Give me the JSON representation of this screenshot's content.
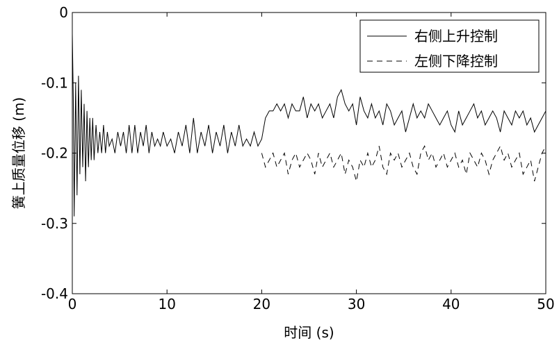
{
  "chart_data": {
    "type": "line",
    "title": "",
    "xlabel": "时间 (s)",
    "ylabel": "簧上质量位移 (m)",
    "xlim": [
      0,
      50
    ],
    "ylim": [
      -0.4,
      0
    ],
    "xticks": [
      0,
      10,
      20,
      30,
      40,
      50
    ],
    "yticks": [
      0,
      -0.1,
      -0.2,
      -0.3,
      -0.4
    ],
    "xtick_labels": [
      "0",
      "10",
      "20",
      "30",
      "40",
      "50"
    ],
    "ytick_labels": [
      "0",
      "-0.1",
      "-0.2",
      "-0.3",
      "-0.4"
    ],
    "grid": false,
    "legend_position": "top-right",
    "series": [
      {
        "name": "右侧上升控制",
        "style": "solid",
        "color": "#000000",
        "x": [
          0,
          0.1,
          0.2,
          0.35,
          0.5,
          0.65,
          0.8,
          0.95,
          1.1,
          1.25,
          1.4,
          1.55,
          1.7,
          1.85,
          2.0,
          2.15,
          2.3,
          2.5,
          2.7,
          2.9,
          3.1,
          3.3,
          3.5,
          3.7,
          3.9,
          4.2,
          4.5,
          4.8,
          5.1,
          5.4,
          5.7,
          6.0,
          6.3,
          6.6,
          6.9,
          7.2,
          7.5,
          7.8,
          8.1,
          8.4,
          8.7,
          9.0,
          9.3,
          9.6,
          10.0,
          10.4,
          10.8,
          11.2,
          11.6,
          12.0,
          12.4,
          12.8,
          13.2,
          13.6,
          14.0,
          14.4,
          14.8,
          15.2,
          15.6,
          16.0,
          16.4,
          16.8,
          17.2,
          17.6,
          18.0,
          18.4,
          18.8,
          19.2,
          19.6,
          20.0,
          20.4,
          20.8,
          21.2,
          21.6,
          22.0,
          22.4,
          22.8,
          23.2,
          23.6,
          24.0,
          24.4,
          24.8,
          25.2,
          25.6,
          26.0,
          26.4,
          26.8,
          27.2,
          27.6,
          28.0,
          28.4,
          28.8,
          29.2,
          29.6,
          30.0,
          30.4,
          30.8,
          31.2,
          31.6,
          32.0,
          32.4,
          32.8,
          33.2,
          33.6,
          34.0,
          34.4,
          34.8,
          35.2,
          35.6,
          36.0,
          36.4,
          36.8,
          37.2,
          37.6,
          38.0,
          38.4,
          38.8,
          39.2,
          39.6,
          40.0,
          40.4,
          40.8,
          41.2,
          41.6,
          42.0,
          42.4,
          42.8,
          43.2,
          43.6,
          44.0,
          44.4,
          44.8,
          45.2,
          45.6,
          46.0,
          46.4,
          46.8,
          47.2,
          47.6,
          48.0,
          48.4,
          48.8,
          49.2,
          49.6,
          50.0
        ],
        "y": [
          -0.03,
          -0.12,
          -0.29,
          -0.1,
          -0.26,
          -0.09,
          -0.23,
          -0.11,
          -0.22,
          -0.13,
          -0.24,
          -0.14,
          -0.22,
          -0.15,
          -0.21,
          -0.15,
          -0.21,
          -0.16,
          -0.2,
          -0.17,
          -0.2,
          -0.16,
          -0.2,
          -0.17,
          -0.19,
          -0.18,
          -0.2,
          -0.17,
          -0.19,
          -0.17,
          -0.2,
          -0.16,
          -0.2,
          -0.16,
          -0.2,
          -0.17,
          -0.19,
          -0.16,
          -0.2,
          -0.17,
          -0.19,
          -0.18,
          -0.19,
          -0.17,
          -0.19,
          -0.18,
          -0.2,
          -0.17,
          -0.19,
          -0.16,
          -0.2,
          -0.15,
          -0.2,
          -0.17,
          -0.19,
          -0.16,
          -0.2,
          -0.17,
          -0.19,
          -0.16,
          -0.2,
          -0.17,
          -0.19,
          -0.16,
          -0.19,
          -0.18,
          -0.19,
          -0.17,
          -0.19,
          -0.18,
          -0.15,
          -0.14,
          -0.14,
          -0.13,
          -0.14,
          -0.13,
          -0.15,
          -0.13,
          -0.14,
          -0.14,
          -0.12,
          -0.15,
          -0.13,
          -0.14,
          -0.13,
          -0.15,
          -0.14,
          -0.13,
          -0.15,
          -0.12,
          -0.11,
          -0.13,
          -0.14,
          -0.13,
          -0.16,
          -0.12,
          -0.14,
          -0.15,
          -0.13,
          -0.15,
          -0.14,
          -0.16,
          -0.13,
          -0.14,
          -0.16,
          -0.15,
          -0.14,
          -0.17,
          -0.15,
          -0.13,
          -0.15,
          -0.14,
          -0.15,
          -0.13,
          -0.14,
          -0.15,
          -0.16,
          -0.15,
          -0.14,
          -0.16,
          -0.17,
          -0.14,
          -0.16,
          -0.15,
          -0.14,
          -0.13,
          -0.15,
          -0.14,
          -0.16,
          -0.15,
          -0.14,
          -0.15,
          -0.17,
          -0.14,
          -0.15,
          -0.16,
          -0.14,
          -0.15,
          -0.14,
          -0.16,
          -0.15,
          -0.17,
          -0.16,
          -0.15,
          -0.14
        ]
      },
      {
        "name": "左侧下降控制",
        "style": "dashed",
        "color": "#000000",
        "x": [
          20.0,
          20.4,
          20.8,
          21.2,
          21.6,
          22.0,
          22.4,
          22.8,
          23.2,
          23.6,
          24.0,
          24.4,
          24.8,
          25.2,
          25.6,
          26.0,
          26.4,
          26.8,
          27.2,
          27.6,
          28.0,
          28.4,
          28.8,
          29.2,
          29.6,
          30.0,
          30.4,
          30.8,
          31.2,
          31.6,
          32.0,
          32.4,
          32.8,
          33.2,
          33.6,
          34.0,
          34.4,
          34.8,
          35.2,
          35.6,
          36.0,
          36.4,
          36.8,
          37.2,
          37.6,
          38.0,
          38.4,
          38.8,
          39.2,
          39.6,
          40.0,
          40.4,
          40.8,
          41.2,
          41.6,
          42.0,
          42.4,
          42.8,
          43.2,
          43.6,
          44.0,
          44.4,
          44.8,
          45.2,
          45.6,
          46.0,
          46.4,
          46.8,
          47.2,
          47.6,
          48.0,
          48.4,
          48.8,
          49.2,
          49.6,
          50.0
        ],
        "y": [
          -0.2,
          -0.22,
          -0.21,
          -0.2,
          -0.22,
          -0.21,
          -0.2,
          -0.23,
          -0.21,
          -0.2,
          -0.22,
          -0.21,
          -0.2,
          -0.21,
          -0.23,
          -0.2,
          -0.22,
          -0.21,
          -0.2,
          -0.22,
          -0.21,
          -0.2,
          -0.23,
          -0.21,
          -0.22,
          -0.24,
          -0.21,
          -0.22,
          -0.2,
          -0.22,
          -0.21,
          -0.19,
          -0.22,
          -0.23,
          -0.2,
          -0.21,
          -0.2,
          -0.22,
          -0.21,
          -0.2,
          -0.22,
          -0.23,
          -0.2,
          -0.19,
          -0.21,
          -0.2,
          -0.22,
          -0.21,
          -0.2,
          -0.22,
          -0.21,
          -0.2,
          -0.22,
          -0.21,
          -0.23,
          -0.2,
          -0.21,
          -0.22,
          -0.2,
          -0.21,
          -0.23,
          -0.21,
          -0.2,
          -0.19,
          -0.21,
          -0.2,
          -0.22,
          -0.21,
          -0.2,
          -0.23,
          -0.22,
          -0.21,
          -0.24,
          -0.22,
          -0.2,
          -0.19
        ]
      }
    ]
  }
}
